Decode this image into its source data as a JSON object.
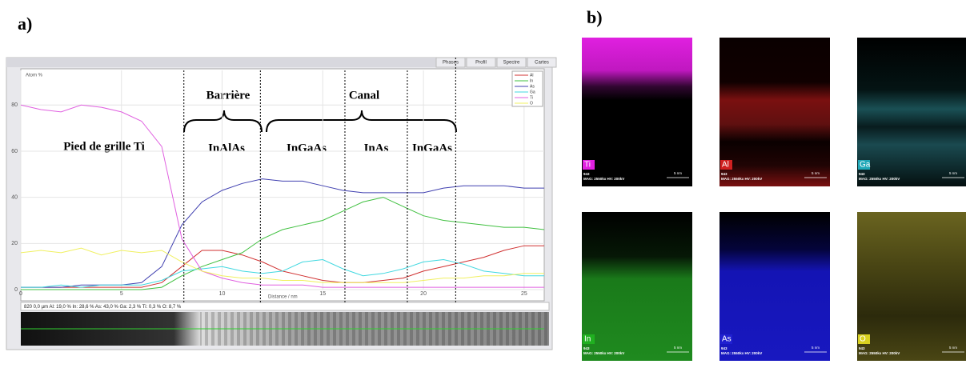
{
  "panel_labels": {
    "a": "a)",
    "b": "b)"
  },
  "chart_data": {
    "type": "line",
    "y_label": "Atom %",
    "x_label": "Distance / nm",
    "tabs": [
      "Phases",
      "Profil",
      "Spectre",
      "Cartes"
    ],
    "status": "820  0,0 µm  Al: 19,0 %  In: 28,6 %  As: 43,0 %  Ga: 2,3 %  Ti: 0,3 %  O: 8,7 %",
    "x": [
      0,
      1,
      2,
      3,
      4,
      5,
      6,
      7,
      8,
      9,
      10,
      11,
      12,
      13,
      14,
      15,
      16,
      17,
      18,
      19,
      20,
      21,
      22,
      23,
      24,
      25,
      26
    ],
    "series": [
      {
        "name": "Al",
        "color": "#d03030",
        "values": [
          1,
          1,
          1,
          1,
          1,
          1,
          1,
          3,
          10,
          17,
          17,
          15,
          12,
          8,
          6,
          4,
          3,
          3,
          4,
          5,
          8,
          10,
          12,
          14,
          17,
          19,
          19
        ]
      },
      {
        "name": "In",
        "color": "#40c040",
        "values": [
          0,
          0,
          0,
          0,
          0,
          0,
          0,
          1,
          6,
          10,
          13,
          16,
          22,
          26,
          28,
          30,
          34,
          38,
          40,
          36,
          32,
          30,
          29,
          28,
          27,
          27,
          26
        ]
      },
      {
        "name": "As",
        "color": "#4040b0",
        "values": [
          1,
          1,
          1,
          2,
          2,
          2,
          3,
          10,
          28,
          38,
          43,
          46,
          48,
          47,
          47,
          45,
          43,
          42,
          42,
          42,
          42,
          44,
          45,
          45,
          45,
          44,
          44
        ]
      },
      {
        "name": "Ga",
        "color": "#40d8e0",
        "values": [
          1,
          1,
          2,
          1,
          2,
          2,
          2,
          4,
          8,
          9,
          10,
          8,
          7,
          8,
          12,
          13,
          9,
          6,
          7,
          9,
          12,
          13,
          11,
          8,
          7,
          6,
          6
        ]
      },
      {
        "name": "Ti",
        "color": "#e060e0",
        "values": [
          80,
          78,
          77,
          80,
          79,
          77,
          73,
          62,
          22,
          8,
          5,
          3,
          2,
          2,
          2,
          1,
          1,
          1,
          1,
          1,
          1,
          1,
          1,
          1,
          1,
          1,
          1
        ]
      },
      {
        "name": "O",
        "color": "#f0f060",
        "values": [
          16,
          17,
          16,
          18,
          15,
          17,
          16,
          17,
          12,
          8,
          6,
          5,
          5,
          4,
          4,
          3,
          3,
          3,
          3,
          3,
          4,
          5,
          5,
          6,
          6,
          7,
          7
        ]
      }
    ],
    "xlim": [
      0,
      26
    ],
    "ylim": [
      0,
      95
    ],
    "xticks": [
      0,
      5,
      10,
      15,
      20,
      25
    ],
    "yticks": [
      0,
      20,
      40,
      60,
      80
    ],
    "grid": true,
    "vlines": [
      8.1,
      11.9,
      16.1,
      19.2,
      21.6
    ],
    "annotations": {
      "barrier": "Barrière",
      "channel": "Canal",
      "gate": "Pied de grille Ti",
      "layers": [
        "InAlAs",
        "InGaAs",
        "InAs",
        "InGaAs"
      ]
    }
  },
  "maps": [
    {
      "label": "Ti",
      "id": "943",
      "info": "MAG: 2550kx HV: 200kV",
      "scale": "5 nm"
    },
    {
      "label": "Al",
      "id": "943",
      "info": "MAG: 2550kx HV: 200kV",
      "scale": "5 nm"
    },
    {
      "label": "Ga",
      "id": "943",
      "info": "MAG: 2550kx HV: 200kV",
      "scale": "5 nm"
    },
    {
      "label": "In",
      "id": "943",
      "info": "MAG: 2550kx HV: 200kV",
      "scale": "5 nm"
    },
    {
      "label": "As",
      "id": "943",
      "info": "MAG: 2550kx HV: 200kV",
      "scale": "5 nm"
    },
    {
      "label": "O",
      "id": "943",
      "info": "MAG: 2550kx HV: 200kV",
      "scale": "5 nm"
    }
  ]
}
